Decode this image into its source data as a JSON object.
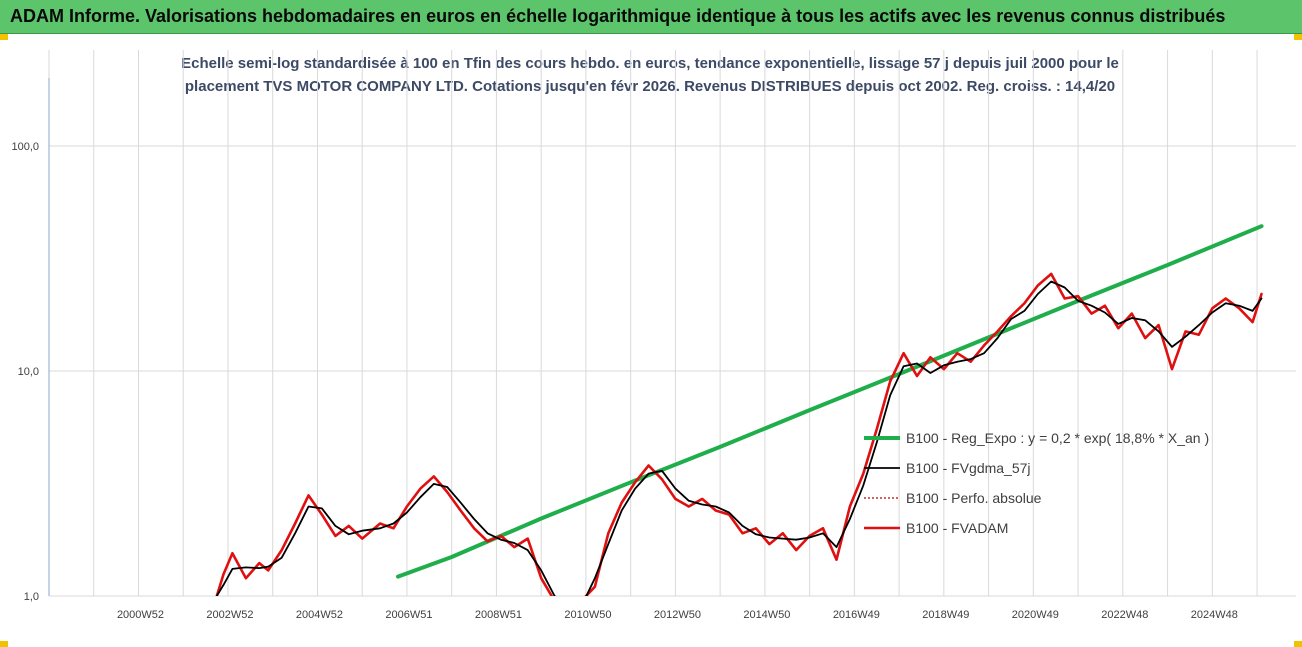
{
  "banner": {
    "title": "ADAM Informe. Valorisations hebdomadaires en euros en échelle logarithmique identique à tous les actifs avec les revenus connus distribués"
  },
  "colors": {
    "banner_bg": "#5cc46a",
    "corner_accent": "#f2c200",
    "reg_expo": "#1fae4b",
    "fvgdma": "#000000",
    "perfo": "#c00000",
    "fvadam": "#e01010",
    "gridline": "#d9d9d9",
    "subtitle_text": "#3d4a66"
  },
  "chart_data": {
    "type": "line",
    "title_line1": "Echelle semi-log standardisée à 100 en Tfin des cours hebdo. en euros, tendance exponentielle, lissage 57 j depuis juil 2000 pour le",
    "title_line2": "placement TVS MOTOR COMPANY LTD. Cotations jusqu'en févr 2026. Revenus DISTRIBUES depuis oct 2002. Reg. croiss. : 14,4/20",
    "y_scale": "log",
    "ylim": [
      1,
      130
    ],
    "xlim": [
      1999.0,
      2026.2
    ],
    "y_ticks": [
      "1,0",
      "10,0",
      "100,0"
    ],
    "y_tick_values": [
      1,
      10,
      100
    ],
    "x_ticks": [
      "2000W52",
      "2002W52",
      "2004W52",
      "2006W51",
      "2008W51",
      "2010W50",
      "2012W50",
      "2014W50",
      "2016W49",
      "2018W49",
      "2020W49",
      "2022W48",
      "2024W48"
    ],
    "x_tick_values": [
      2001.0,
      2003.0,
      2005.0,
      2007.0,
      2009.0,
      2011.0,
      2013.0,
      2015.0,
      2017.0,
      2019.0,
      2021.0,
      2023.0,
      2025.0
    ],
    "grid": "vertical",
    "legend_position": "right",
    "series": [
      {
        "name": "B100 - Reg_Expo : y = 0,2 * exp( 18,8% *  X_an )",
        "color": "#1fae4b",
        "style": "solid",
        "x": [
          2006.8,
          2008.0,
          2010.0,
          2012.0,
          2014.0,
          2016.0,
          2018.0,
          2020.0,
          2022.0,
          2024.0,
          2026.1
        ],
        "y": [
          1.22,
          1.49,
          2.21,
          3.2,
          4.6,
          6.7,
          9.7,
          14.1,
          20.5,
          29.6,
          44.0
        ]
      },
      {
        "name": "B100 - FVgdma_57j",
        "color": "#000000",
        "style": "solid",
        "x": [
          2002.75,
          2002.9,
          2003.1,
          2003.4,
          2003.7,
          2003.9,
          2004.2,
          2004.5,
          2004.8,
          2005.1,
          2005.4,
          2005.7,
          2006.0,
          2006.4,
          2006.7,
          2007.0,
          2007.3,
          2007.6,
          2007.9,
          2008.2,
          2008.5,
          2008.8,
          2009.1,
          2009.4,
          2009.7,
          2010.0,
          2010.3,
          2010.6,
          2010.9,
          2011.2,
          2011.5,
          2011.8,
          2012.1,
          2012.4,
          2012.7,
          2013.0,
          2013.3,
          2013.6,
          2013.9,
          2014.2,
          2014.5,
          2014.8,
          2015.1,
          2015.4,
          2015.7,
          2016.0,
          2016.3,
          2016.6,
          2016.9,
          2017.2,
          2017.5,
          2017.8,
          2018.1,
          2018.4,
          2018.7,
          2019.0,
          2019.3,
          2019.6,
          2019.9,
          2020.2,
          2020.5,
          2020.8,
          2021.1,
          2021.4,
          2021.7,
          2022.0,
          2022.3,
          2022.6,
          2022.9,
          2023.2,
          2023.5,
          2023.8,
          2024.1,
          2024.4,
          2024.7,
          2025.0,
          2025.3,
          2025.6,
          2025.9,
          2026.1
        ],
        "y": [
          1.0,
          1.12,
          1.32,
          1.34,
          1.33,
          1.35,
          1.48,
          1.9,
          2.5,
          2.45,
          2.05,
          1.88,
          1.95,
          2.0,
          2.1,
          2.35,
          2.75,
          3.15,
          3.05,
          2.6,
          2.2,
          1.9,
          1.78,
          1.72,
          1.6,
          1.3,
          1.0,
          0.9,
          0.9,
          1.2,
          1.7,
          2.4,
          3.0,
          3.5,
          3.6,
          3.0,
          2.65,
          2.55,
          2.5,
          2.35,
          2.05,
          1.88,
          1.82,
          1.8,
          1.78,
          1.82,
          1.9,
          1.65,
          2.2,
          3.1,
          4.8,
          7.8,
          10.5,
          10.8,
          9.8,
          10.6,
          11.0,
          11.3,
          12.0,
          14.0,
          17.0,
          18.5,
          22.0,
          25.0,
          23.5,
          20.5,
          19.5,
          18.2,
          16.2,
          17.2,
          16.8,
          15.0,
          12.8,
          14.2,
          16.0,
          18.2,
          20.0,
          19.5,
          18.5,
          21.0
        ]
      },
      {
        "name": "B100 - Perfo. absolue",
        "color": "#c00000",
        "style": "dotted",
        "x": [],
        "y": []
      },
      {
        "name": "B100 - FVADAM",
        "color": "#e01010",
        "style": "solid-thick",
        "x": [
          2002.75,
          2002.9,
          2003.1,
          2003.4,
          2003.7,
          2003.9,
          2004.2,
          2004.5,
          2004.8,
          2005.1,
          2005.4,
          2005.7,
          2006.0,
          2006.4,
          2006.7,
          2007.0,
          2007.3,
          2007.6,
          2007.9,
          2008.2,
          2008.5,
          2008.8,
          2009.1,
          2009.4,
          2009.7,
          2010.0,
          2010.3,
          2010.6,
          2010.9,
          2011.2,
          2011.5,
          2011.8,
          2012.1,
          2012.4,
          2012.7,
          2013.0,
          2013.3,
          2013.6,
          2013.9,
          2014.2,
          2014.5,
          2014.8,
          2015.1,
          2015.4,
          2015.7,
          2016.0,
          2016.3,
          2016.6,
          2016.9,
          2017.2,
          2017.5,
          2017.8,
          2018.1,
          2018.4,
          2018.7,
          2019.0,
          2019.3,
          2019.6,
          2019.9,
          2020.2,
          2020.5,
          2020.8,
          2021.1,
          2021.4,
          2021.7,
          2022.0,
          2022.3,
          2022.6,
          2022.9,
          2023.2,
          2023.5,
          2023.8,
          2024.1,
          2024.4,
          2024.7,
          2025.0,
          2025.3,
          2025.6,
          2025.9,
          2026.1
        ],
        "y": [
          1.0,
          1.25,
          1.55,
          1.2,
          1.4,
          1.3,
          1.6,
          2.1,
          2.8,
          2.3,
          1.85,
          2.05,
          1.8,
          2.1,
          2.0,
          2.5,
          3.0,
          3.4,
          2.9,
          2.4,
          2.0,
          1.75,
          1.85,
          1.65,
          1.8,
          1.2,
          0.95,
          0.85,
          0.95,
          1.1,
          1.9,
          2.6,
          3.2,
          3.8,
          3.3,
          2.7,
          2.5,
          2.7,
          2.4,
          2.3,
          1.9,
          2.0,
          1.7,
          1.9,
          1.6,
          1.85,
          2.0,
          1.45,
          2.5,
          3.5,
          5.5,
          9.0,
          12.0,
          9.5,
          11.5,
          10.2,
          12.0,
          11.0,
          13.0,
          15.0,
          17.5,
          20.0,
          24.0,
          27.0,
          21.0,
          21.5,
          18.0,
          19.5,
          15.5,
          18.0,
          14.0,
          16.0,
          10.2,
          15.0,
          14.5,
          19.0,
          21.0,
          19.0,
          16.5,
          22.0
        ]
      }
    ]
  }
}
